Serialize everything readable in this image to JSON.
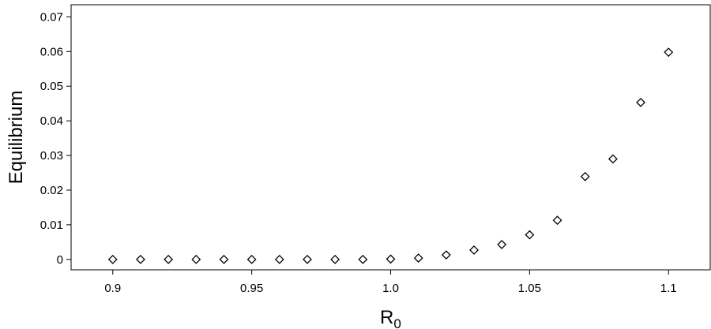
{
  "chart_data": {
    "type": "scatter",
    "title": "",
    "xlabel_main": "R",
    "xlabel_sub": "0",
    "ylabel": "Equilibrium",
    "xlim": [
      0.885,
      1.115
    ],
    "ylim": [
      -0.003,
      0.0735
    ],
    "x_ticks": [
      0.9,
      0.95,
      1.0,
      1.05,
      1.1
    ],
    "x_tick_labels": [
      "0.9",
      "0.95",
      "1.0",
      "1.05",
      "1.1"
    ],
    "y_ticks": [
      0,
      0.01,
      0.02,
      0.03,
      0.04,
      0.05,
      0.06,
      0.07
    ],
    "y_tick_labels": [
      "0",
      "0.01",
      "0.02",
      "0.03",
      "0.04",
      "0.05",
      "0.06",
      "0.07"
    ],
    "marker": "open-diamond",
    "grid": false,
    "x": [
      0.9,
      0.91,
      0.92,
      0.93,
      0.94,
      0.95,
      0.96,
      0.97,
      0.98,
      0.99,
      1.0,
      1.01,
      1.02,
      1.03,
      1.04,
      1.05,
      1.06,
      1.07,
      1.08,
      1.09,
      1.1
    ],
    "y": [
      0,
      0,
      0,
      0,
      0,
      0,
      0,
      0,
      0,
      0,
      0.0001,
      0.0004,
      0.0013,
      0.0027,
      0.0043,
      0.0071,
      0.0113,
      0.0239,
      0.029,
      0.0453,
      0.0598
    ]
  }
}
